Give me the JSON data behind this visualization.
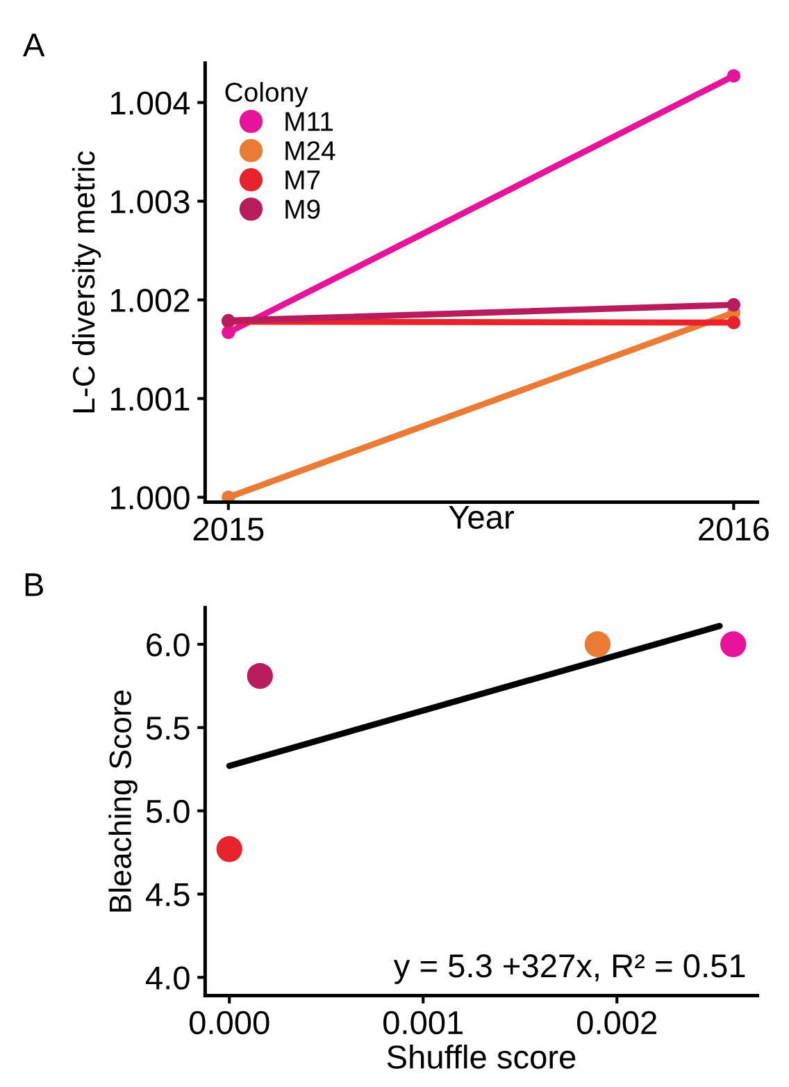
{
  "chart_data": [
    {
      "type": "line",
      "title": "A",
      "xlabel": "Year",
      "ylabel": "L-C diversity metric",
      "legend_title": "Colony",
      "legend": "top left",
      "marker": "circle",
      "grid": false,
      "x": [
        2015,
        2016
      ],
      "xlim": [
        2014.954,
        2016.047
      ],
      "xticks": [
        2015,
        2016
      ],
      "ylim": [
        0.99995,
        1.0044
      ],
      "yticks": [
        {
          "value": 1.0,
          "label": "1.000"
        },
        1.001,
        1.002,
        1.003,
        1.004
      ],
      "series": [
        {
          "name": "M11",
          "color": "#e8139b",
          "values": [
            1.00167,
            1.00427
          ]
        },
        {
          "name": "M24",
          "color": "#e97b35",
          "values": [
            1.0,
            1.00187
          ]
        },
        {
          "name": "M7",
          "color": "#e8232b",
          "values": [
            1.00178,
            1.00177
          ]
        },
        {
          "name": "M9",
          "color": "#b81c5c",
          "values": [
            1.00179,
            1.00195
          ]
        }
      ]
    },
    {
      "type": "scatter",
      "title": "B",
      "xlabel": "Shuffle score",
      "ylabel": "Bleaching Score",
      "grid": false,
      "legend": false,
      "xlim": [
        -0.000125,
        0.002725
      ],
      "xticks": [
        {
          "value": 0,
          "label": "0.000"
        },
        0.001,
        0.002
      ],
      "ylim": [
        3.89,
        6.22
      ],
      "yticks": [
        {
          "value": 4,
          "label": "4.0"
        },
        4.5,
        {
          "value": 5,
          "label": "5.0"
        },
        5.5,
        {
          "value": 6,
          "label": "6.0"
        }
      ],
      "annotations": [
        {
          "text": "y = 5.3 +327x, R² = 0.51"
        }
      ],
      "series": [
        {
          "type": "scatter",
          "x": [
            0.0,
            0.000158,
            0.0019,
            0.0026
          ],
          "values": [
            4.77,
            5.81,
            6.0,
            6.0
          ],
          "colors": [
            "#e8232b",
            "#b81c5c",
            "#e97b35",
            "#e8139b"
          ]
        },
        {
          "type": "line",
          "x": [
            0.0,
            0.00253
          ],
          "values": [
            5.27,
            6.11
          ],
          "color": "#000000"
        }
      ]
    }
  ]
}
